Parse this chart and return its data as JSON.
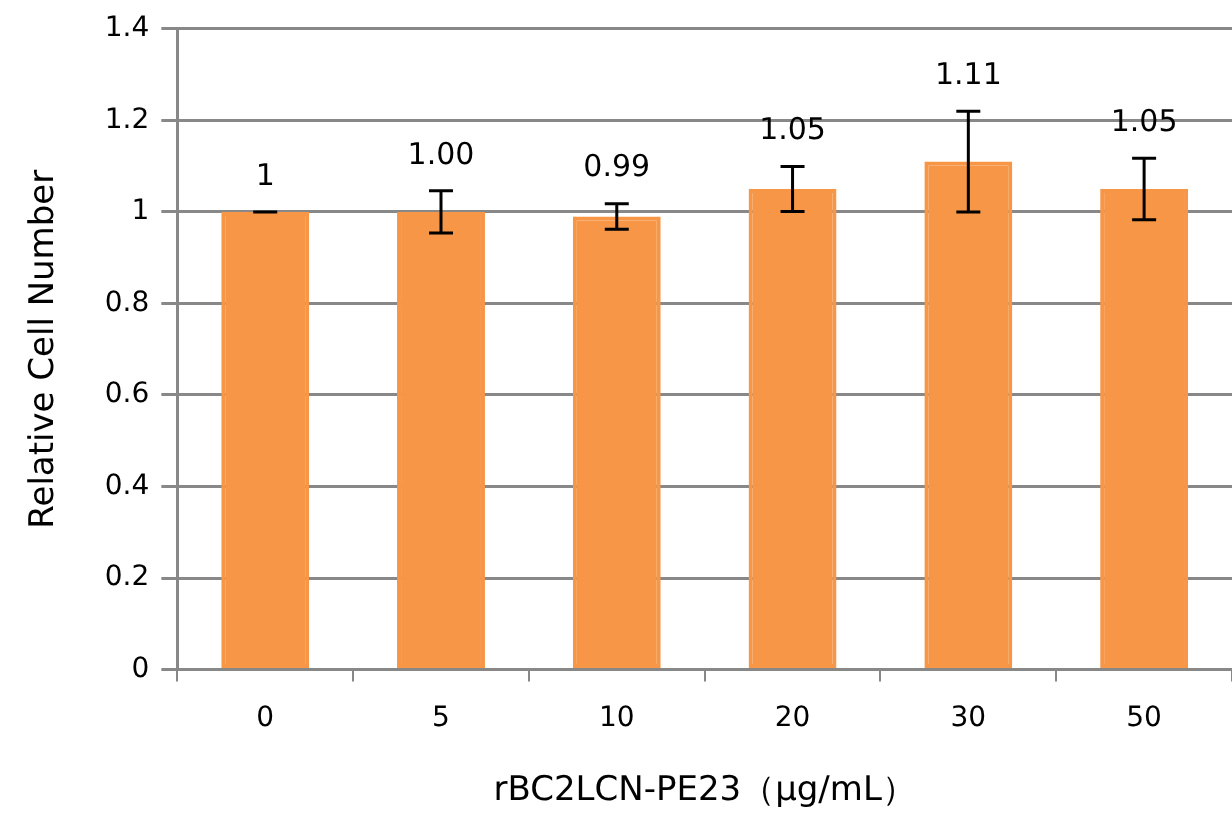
{
  "chart_data": {
    "type": "bar",
    "xlabel": "rBC2LCN-PE23（μg/mL）",
    "ylabel": "Relative Cell Number",
    "categories": [
      "0",
      "5",
      "10",
      "20",
      "30",
      "50"
    ],
    "values": [
      1,
      1.0,
      0.99,
      1.05,
      1.11,
      1.05
    ],
    "value_labels": [
      "1",
      "1.00",
      "0.99",
      "1.05",
      "1.11",
      "1.05"
    ],
    "errors": [
      0,
      0.046,
      0.028,
      0.049,
      0.11,
      0.067
    ],
    "color": "#f79646",
    "ylim": [
      0,
      1.4
    ],
    "yticks": [
      0,
      0.2,
      0.4,
      0.6,
      0.8,
      1,
      1.2,
      1.4
    ],
    "grid": "y",
    "legend": false
  }
}
